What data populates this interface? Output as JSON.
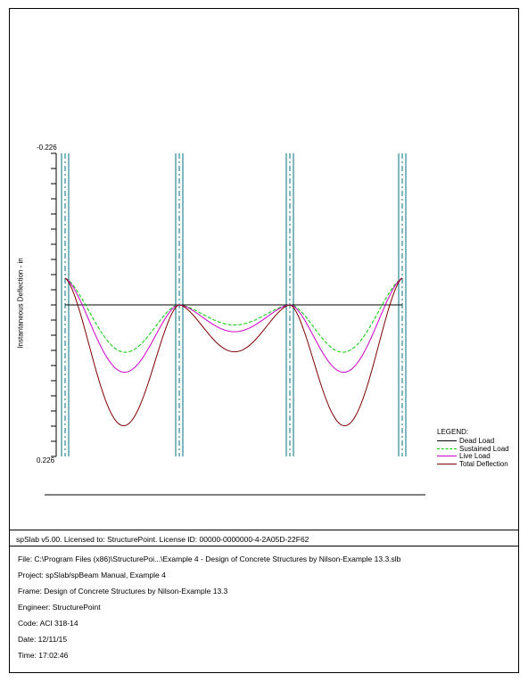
{
  "chart_data": {
    "type": "line",
    "ylabel": "Instantaneous Deflection - in",
    "y_tick_top": "-0.226",
    "y_tick_bottom": "0.226",
    "ylim": [
      -0.226,
      0.226
    ],
    "y_inverted": true,
    "grid": false,
    "legend_position": "right-bottom",
    "legend_title": "LEGEND:",
    "series": [
      {
        "name": "Dead Load",
        "color": "#000000",
        "dash": "solid",
        "support_values": [
          0,
          0,
          0,
          0
        ],
        "peak_values": [
          0,
          0,
          0
        ]
      },
      {
        "name": "Sustained Load",
        "color": "#00cc00",
        "dash": "dashed",
        "support_values": [
          -0.04,
          0,
          0,
          -0.04
        ],
        "peak_values": [
          0.07,
          0.03,
          0.07
        ]
      },
      {
        "name": "Live Load",
        "color": "#cc00cc",
        "dash": "solid",
        "support_values": [
          -0.04,
          0,
          0,
          -0.04
        ],
        "peak_values": [
          0.1,
          0.04,
          0.1
        ]
      },
      {
        "name": "Total Deflection",
        "color": "#800000",
        "dash": "solid",
        "support_values": [
          -0.04,
          0,
          0,
          -0.04
        ],
        "peak_values": [
          0.18,
          0.07,
          0.18
        ]
      }
    ],
    "supports": 4
  },
  "footer": {
    "license": "spSlab v5.00. Licensed to: StructurePoint. License ID: 00000-0000000-4-2A05D-22F62",
    "file": "File: C:\\Program Files (x86)\\StructurePoi...\\Example 4 - Design of Concrete Structures by Nilson-Example 13.3.slb",
    "project": "Project: spSlab/spBeam Manual, Example 4",
    "frame": "Frame: Design of Concrete Structures by Nilson-Example 13.3",
    "engineer": "Engineer: StructurePoint",
    "code": "Code: ACI 318-14",
    "date": "Date: 12/11/15",
    "time": "Time: 17:02:46"
  },
  "colors": {
    "support_line": "#007080",
    "axis": "#000000"
  }
}
